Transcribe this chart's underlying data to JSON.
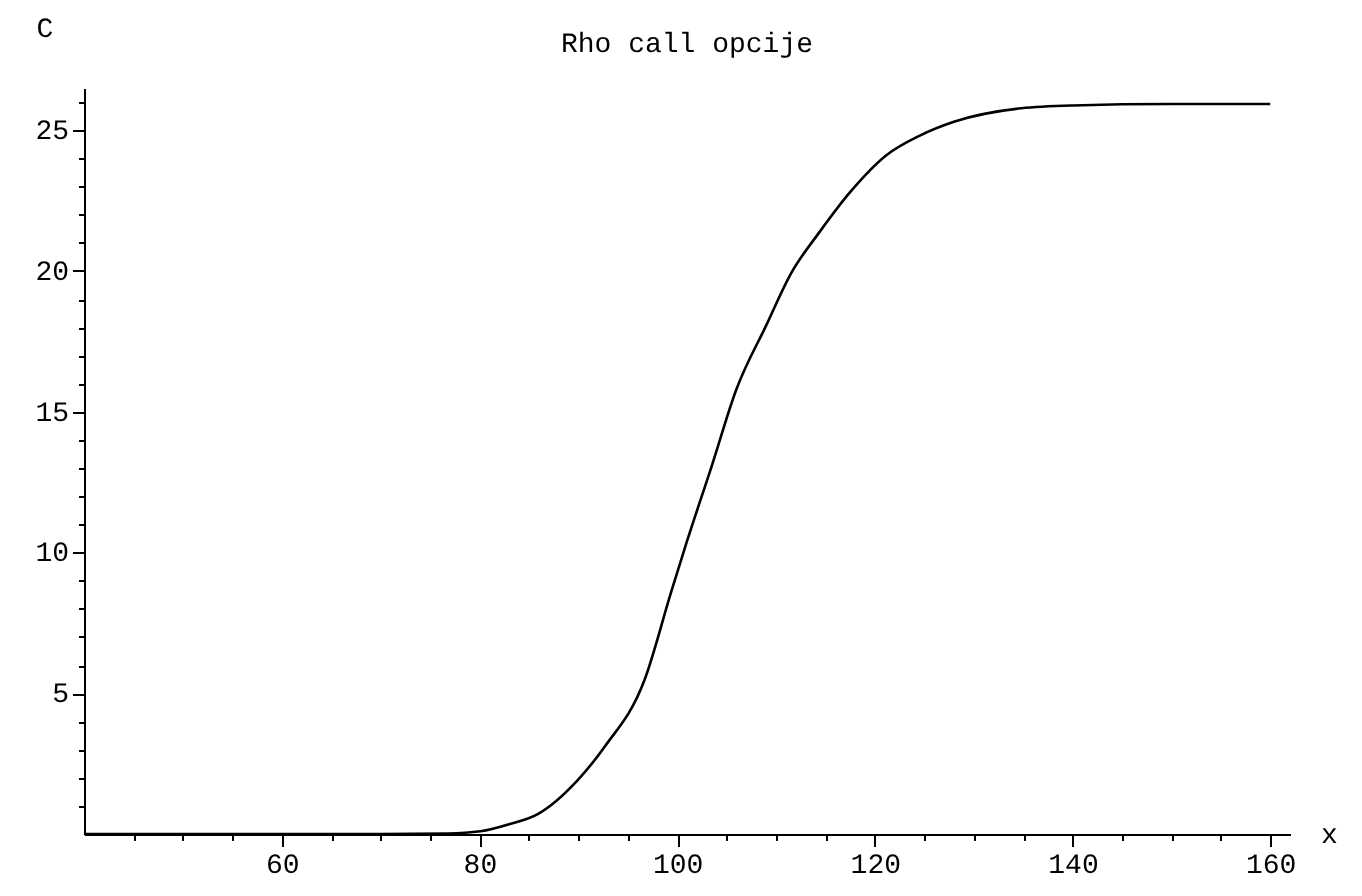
{
  "chart_data": {
    "type": "line",
    "title": "Rho call opcije",
    "xlabel": "x",
    "ylabel": "C",
    "x": [
      40,
      60,
      70,
      76.8,
      80.1,
      83,
      85.9,
      89.9,
      92.65,
      96.7,
      99.4,
      101,
      103.5,
      106,
      109,
      111.5,
      114.4,
      117.5,
      121.2,
      124.5,
      128,
      134.8,
      140,
      150,
      160
    ],
    "series": [
      {
        "color": "#000000",
        "values": [
          0,
          0,
          0,
          0.02,
          0.1,
          0.35,
          0.71,
          1.9,
          3.09,
          5.47,
          8.6,
          10.4,
          13.07,
          15.8,
          18.06,
          19.9,
          21.38,
          22.8,
          24.12,
          24.8,
          25.3,
          25.78,
          25.88,
          25.93,
          25.93
        ]
      }
    ],
    "xlim": [
      40,
      162
    ],
    "ylim": [
      0,
      26.5
    ],
    "xticks": [
      {
        "value": 45,
        "label": null
      },
      {
        "value": 50,
        "label": null
      },
      {
        "value": 55,
        "label": null
      },
      60,
      {
        "value": 65,
        "label": null
      },
      {
        "value": 70,
        "label": null
      },
      {
        "value": 75,
        "label": null
      },
      80,
      {
        "value": 85,
        "label": null
      },
      {
        "value": 90,
        "label": null
      },
      {
        "value": 95,
        "label": null
      },
      100,
      {
        "value": 105,
        "label": null
      },
      {
        "value": 110,
        "label": null
      },
      {
        "value": 115,
        "label": null
      },
      120,
      {
        "value": 125,
        "label": null
      },
      {
        "value": 130,
        "label": null
      },
      {
        "value": 135,
        "label": null
      },
      140,
      {
        "value": 145,
        "label": null
      },
      {
        "value": 150,
        "label": null
      },
      {
        "value": 155,
        "label": null
      },
      160
    ],
    "yticks": [
      {
        "value": 1,
        "label": null
      },
      {
        "value": 2,
        "label": null
      },
      {
        "value": 3,
        "label": null
      },
      {
        "value": 4,
        "label": null
      },
      5,
      {
        "value": 6,
        "label": null
      },
      {
        "value": 7,
        "label": null
      },
      {
        "value": 8,
        "label": null
      },
      {
        "value": 9,
        "label": null
      },
      10,
      {
        "value": 11,
        "label": null
      },
      {
        "value": 12,
        "label": null
      },
      {
        "value": 13,
        "label": null
      },
      {
        "value": 14,
        "label": null
      },
      15,
      {
        "value": 16,
        "label": null
      },
      {
        "value": 17,
        "label": null
      },
      {
        "value": 18,
        "label": null
      },
      {
        "value": 19,
        "label": null
      },
      20,
      {
        "value": 21,
        "label": null
      },
      {
        "value": 22,
        "label": null
      },
      {
        "value": 23,
        "label": null
      },
      {
        "value": 24,
        "label": null
      },
      25,
      {
        "value": 26,
        "label": null
      }
    ],
    "grid": false,
    "marker": "none",
    "line_style": "solid"
  }
}
